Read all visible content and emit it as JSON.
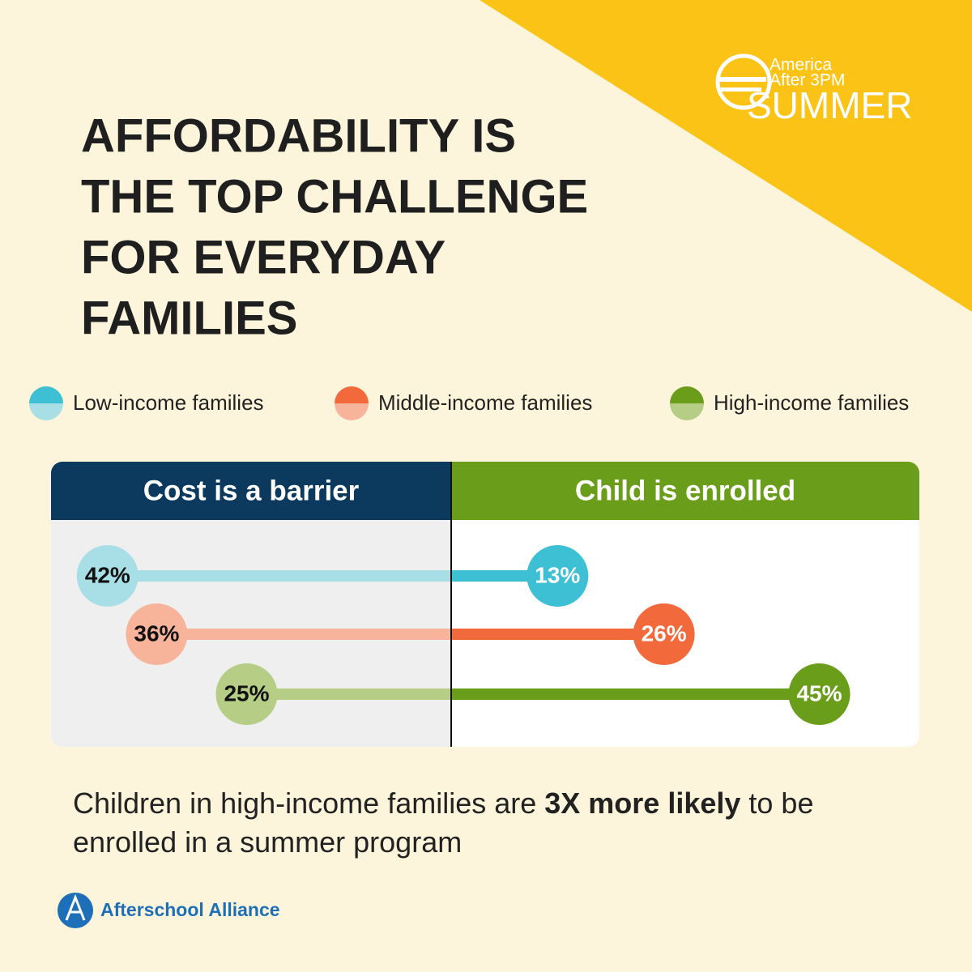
{
  "brand": {
    "line1": "America",
    "line2": "After 3PM",
    "line3": "SUMMER"
  },
  "chart_data": {
    "type": "diverging",
    "title_lines": [
      "AFFORDABILITY IS",
      "THE TOP CHALLENGE",
      "FOR EVERYDAY",
      "FAMILIES"
    ],
    "categories": [
      "Cost is a barrier",
      "Child is enrolled"
    ],
    "category_colors": [
      "#0b3a5e",
      "#6a9e1a"
    ],
    "series": [
      {
        "name": "Low-income families",
        "color": "#3ec0d4",
        "light_color": "#a8dfe6",
        "values": [
          42,
          13
        ],
        "value_labels": [
          "42%",
          "13%"
        ]
      },
      {
        "name": "Middle-income families",
        "color": "#f26a3c",
        "light_color": "#f7b49b",
        "values": [
          36,
          26
        ],
        "value_labels": [
          "36%",
          "26%"
        ]
      },
      {
        "name": "High-income families",
        "color": "#6a9e1a",
        "light_color": "#b5cd84",
        "values": [
          25,
          45
        ],
        "value_labels": [
          "25%",
          "45%"
        ]
      }
    ]
  },
  "note": {
    "parts": [
      "Children in high-income families are ",
      "3X more likely",
      " to be enrolled in a summer program"
    ]
  },
  "footer": {
    "org": "Afterschool Alliance"
  }
}
